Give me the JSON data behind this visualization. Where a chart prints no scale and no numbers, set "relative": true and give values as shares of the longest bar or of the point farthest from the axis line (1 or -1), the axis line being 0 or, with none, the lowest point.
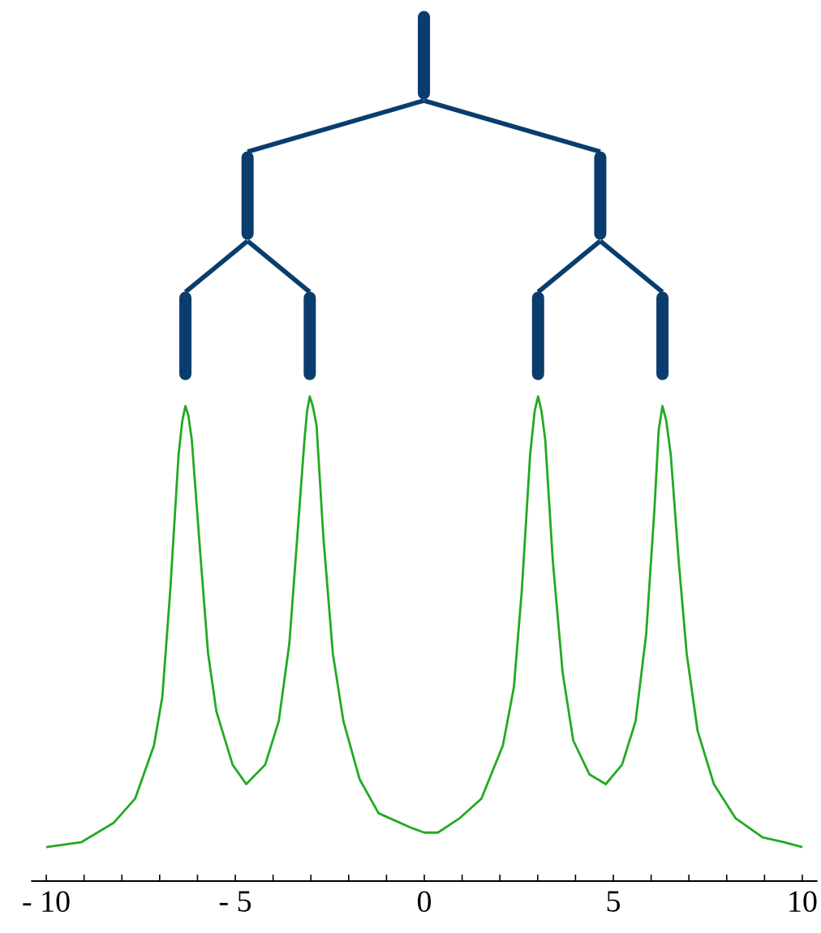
{
  "chart_data": {
    "type": "line",
    "relative": true,
    "color": "#22aa22",
    "x": [
      -10.0,
      -9.08,
      -8.22,
      -7.65,
      -7.15,
      -6.93,
      -6.72,
      -6.5,
      -6.4,
      -6.32,
      -6.24,
      -6.15,
      -5.93,
      -5.72,
      -5.5,
      -5.07,
      -4.71,
      -4.21,
      -3.85,
      -3.57,
      -3.36,
      -3.17,
      -3.1,
      -3.03,
      -2.95,
      -2.85,
      -2.67,
      -2.42,
      -2.14,
      -1.71,
      -1.21,
      -0.35,
      0.0,
      0.36,
      0.94,
      1.51,
      2.08,
      2.37,
      2.58,
      2.8,
      2.92,
      3.01,
      3.1,
      3.2,
      3.4,
      3.66,
      3.94,
      4.37,
      4.8,
      5.23,
      5.59,
      5.87,
      6.09,
      6.2,
      6.3,
      6.4,
      6.52,
      6.73,
      6.94,
      7.23,
      7.66,
      8.23,
      8.95,
      9.52,
      10.0
    ],
    "values": [
      0.07,
      0.08,
      0.12,
      0.17,
      0.28,
      0.38,
      0.6,
      0.88,
      0.95,
      0.98,
      0.96,
      0.91,
      0.68,
      0.47,
      0.35,
      0.24,
      0.2,
      0.24,
      0.33,
      0.49,
      0.71,
      0.91,
      0.97,
      1.0,
      0.98,
      0.94,
      0.71,
      0.47,
      0.33,
      0.21,
      0.14,
      0.11,
      0.1,
      0.1,
      0.13,
      0.17,
      0.28,
      0.4,
      0.6,
      0.88,
      0.97,
      1.0,
      0.97,
      0.91,
      0.66,
      0.43,
      0.29,
      0.22,
      0.2,
      0.24,
      0.33,
      0.51,
      0.77,
      0.93,
      0.98,
      0.95,
      0.88,
      0.66,
      0.47,
      0.31,
      0.2,
      0.13,
      0.09,
      0.08,
      0.07
    ],
    "xlim": [
      -10.4,
      10.4
    ],
    "xticks": [
      {
        "value": -10,
        "label": "- 10"
      },
      {
        "value": -9,
        "label": null
      },
      {
        "value": -8,
        "label": null
      },
      {
        "value": -7,
        "label": null
      },
      {
        "value": -6,
        "label": null
      },
      {
        "value": -5,
        "label": "- 5"
      },
      {
        "value": -4,
        "label": null
      },
      {
        "value": -3,
        "label": null
      },
      {
        "value": -2,
        "label": null
      },
      {
        "value": -1,
        "label": null
      },
      0,
      {
        "value": 1,
        "label": null
      },
      {
        "value": 2,
        "label": null
      },
      {
        "value": 3,
        "label": null
      },
      {
        "value": 4,
        "label": null
      },
      5,
      {
        "value": 6,
        "label": null
      },
      {
        "value": 7,
        "label": null
      },
      {
        "value": 8,
        "label": null
      },
      {
        "value": 9,
        "label": null
      },
      10
    ]
  }
}
